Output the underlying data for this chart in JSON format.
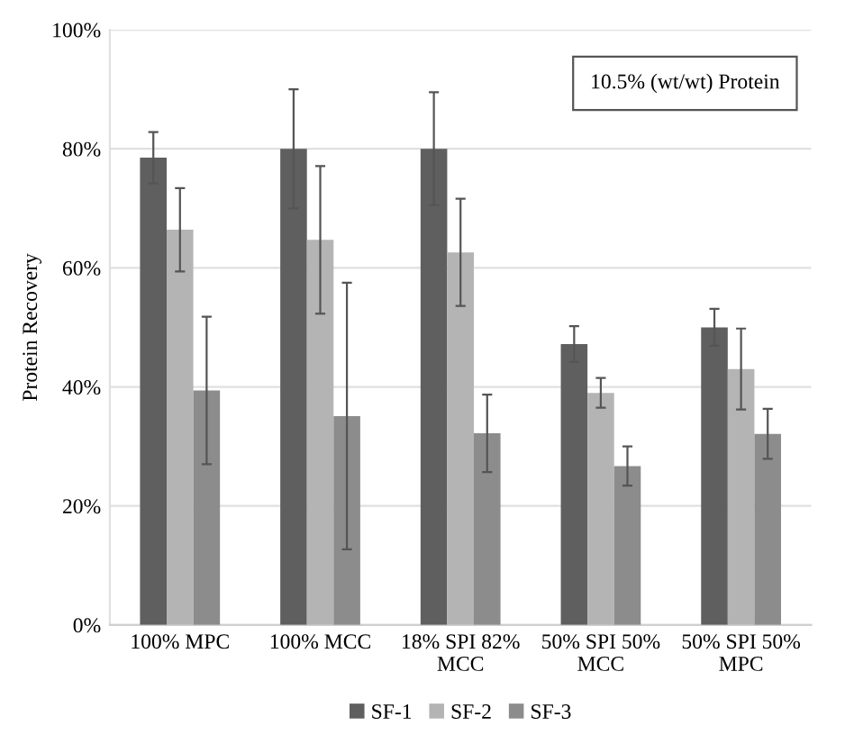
{
  "chart_data": {
    "type": "bar",
    "ylabel": "Protein Recovery",
    "annotations": [
      "10.5% (wt/wt) Protein"
    ],
    "categories": [
      "100% MPC",
      "100% MCC",
      "18% SPI 82%\nMCC",
      "50% SPI 50%\nMCC",
      "50% SPI 50%\nMPC"
    ],
    "series": [
      {
        "name": "SF-1",
        "color": "#5f5f5f",
        "values": [
          78.5,
          80.0,
          80.0,
          47.2,
          50.0
        ],
        "errors": [
          4.3,
          10.0,
          9.5,
          3.0,
          3.1
        ]
      },
      {
        "name": "SF-2",
        "color": "#b4b4b4",
        "values": [
          66.4,
          64.7,
          62.6,
          39.0,
          43.0
        ],
        "errors": [
          7.0,
          12.4,
          9.0,
          2.5,
          6.8
        ]
      },
      {
        "name": "SF-3",
        "color": "#8c8c8c",
        "values": [
          39.4,
          35.1,
          32.2,
          26.7,
          32.1
        ],
        "errors": [
          12.4,
          22.4,
          6.5,
          3.3,
          4.2
        ]
      }
    ],
    "ylim": [
      0,
      100
    ],
    "yticks": [
      {
        "value": 0,
        "label": "0%"
      },
      {
        "value": 20,
        "label": "20%"
      },
      {
        "value": 40,
        "label": "40%"
      },
      {
        "value": 60,
        "label": "60%"
      },
      {
        "value": 80,
        "label": "80%"
      },
      {
        "value": 100,
        "label": "100%"
      }
    ],
    "grid": "y",
    "legend": "bottom"
  }
}
